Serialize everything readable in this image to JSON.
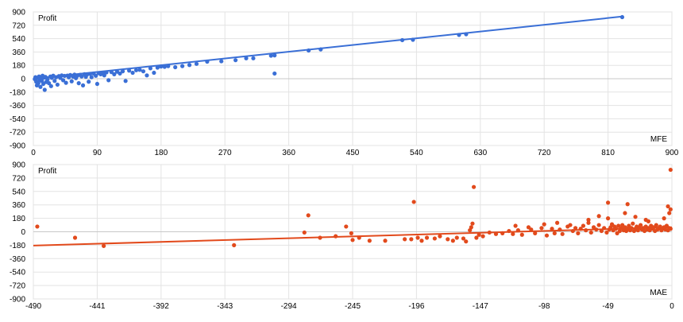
{
  "chart_data": [
    {
      "type": "scatter",
      "title": "",
      "ylabel": "Profit",
      "xlabel": "MFE",
      "xlim": [
        0,
        900
      ],
      "ylim": [
        -900,
        900
      ],
      "x_ticks": [
        0,
        90,
        180,
        270,
        360,
        450,
        540,
        630,
        720,
        810,
        900
      ],
      "y_ticks": [
        900,
        720,
        540,
        360,
        180,
        0,
        -180,
        -360,
        -540,
        -720,
        -900
      ],
      "grid": true,
      "colors": {
        "points": "#3a6fd6",
        "trend": "#3a6fd6"
      },
      "trendline": {
        "x": [
          0,
          830
        ],
        "y": [
          0,
          838
        ]
      },
      "series": [
        {
          "points": [
            [
              2,
              -5
            ],
            [
              3,
              20
            ],
            [
              4,
              -40
            ],
            [
              5,
              -90
            ],
            [
              6,
              10
            ],
            [
              7,
              -60
            ],
            [
              8,
              30
            ],
            [
              9,
              -20
            ],
            [
              10,
              -110
            ],
            [
              11,
              5
            ],
            [
              12,
              -30
            ],
            [
              13,
              40
            ],
            [
              14,
              -70
            ],
            [
              15,
              15
            ],
            [
              16,
              -150
            ],
            [
              17,
              25
            ],
            [
              18,
              -45
            ],
            [
              19,
              8
            ],
            [
              20,
              -10
            ],
            [
              22,
              -60
            ],
            [
              24,
              30
            ],
            [
              25,
              -100
            ],
            [
              26,
              12
            ],
            [
              28,
              40
            ],
            [
              30,
              -30
            ],
            [
              32,
              20
            ],
            [
              34,
              -80
            ],
            [
              36,
              35
            ],
            [
              38,
              10
            ],
            [
              40,
              45
            ],
            [
              42,
              -20
            ],
            [
              44,
              38
            ],
            [
              46,
              -55
            ],
            [
              48,
              42
            ],
            [
              50,
              18
            ],
            [
              52,
              50
            ],
            [
              54,
              -35
            ],
            [
              56,
              28
            ],
            [
              58,
              55
            ],
            [
              60,
              8
            ],
            [
              62,
              40
            ],
            [
              64,
              -60
            ],
            [
              66,
              52
            ],
            [
              68,
              30
            ],
            [
              70,
              -90
            ],
            [
              72,
              60
            ],
            [
              74,
              25
            ],
            [
              76,
              58
            ],
            [
              78,
              -40
            ],
            [
              80,
              65
            ],
            [
              82,
              20
            ],
            [
              85,
              70
            ],
            [
              88,
              40
            ],
            [
              90,
              -70
            ],
            [
              92,
              75
            ],
            [
              95,
              60
            ],
            [
              98,
              80
            ],
            [
              100,
              45
            ],
            [
              103,
              85
            ],
            [
              106,
              -20
            ],
            [
              110,
              90
            ],
            [
              114,
              60
            ],
            [
              118,
              95
            ],
            [
              122,
              70
            ],
            [
              126,
              100
            ],
            [
              130,
              -30
            ],
            [
              135,
              110
            ],
            [
              140,
              80
            ],
            [
              145,
              115
            ],
            [
              150,
              120
            ],
            [
              155,
              100
            ],
            [
              160,
              45
            ],
            [
              165,
              140
            ],
            [
              170,
              80
            ],
            [
              175,
              150
            ],
            [
              180,
              165
            ],
            [
              185,
              160
            ],
            [
              190,
              170
            ],
            [
              200,
              155
            ],
            [
              210,
              170
            ],
            [
              220,
              185
            ],
            [
              230,
              200
            ],
            [
              245,
              230
            ],
            [
              265,
              235
            ],
            [
              285,
              250
            ],
            [
              300,
              275
            ],
            [
              310,
              275
            ],
            [
              335,
              310
            ],
            [
              340,
              315
            ],
            [
              340,
              70
            ],
            [
              388,
              380
            ],
            [
              405,
              395
            ],
            [
              520,
              520
            ],
            [
              535,
              525
            ],
            [
              600,
              590
            ],
            [
              610,
              600
            ],
            [
              830,
              830
            ]
          ]
        }
      ]
    },
    {
      "type": "scatter",
      "title": "",
      "ylabel": "Profit",
      "xlabel": "MAE",
      "xlim": [
        -490,
        0
      ],
      "ylim": [
        -900,
        900
      ],
      "x_ticks": [
        -490,
        -441,
        -392,
        -343,
        -294,
        -245,
        -196,
        -147,
        -98,
        -49,
        0
      ],
      "y_ticks": [
        900,
        720,
        540,
        360,
        180,
        0,
        -180,
        -360,
        -540,
        -720,
        -900
      ],
      "grid": true,
      "colors": {
        "points": "#e24a1c",
        "trend": "#e24a1c"
      },
      "trendline": {
        "x": [
          -490,
          0
        ],
        "y": [
          -185,
          60
        ]
      },
      "series": [
        {
          "points": [
            [
              -487,
              70
            ],
            [
              -458,
              -80
            ],
            [
              -436,
              -190
            ],
            [
              -336,
              -180
            ],
            [
              -282,
              -10
            ],
            [
              -279,
              220
            ],
            [
              -270,
              -80
            ],
            [
              -258,
              -60
            ],
            [
              -250,
              70
            ],
            [
              -246,
              -20
            ],
            [
              -245,
              -110
            ],
            [
              -240,
              -80
            ],
            [
              -232,
              -120
            ],
            [
              -220,
              -120
            ],
            [
              -205,
              -100
            ],
            [
              -200,
              -100
            ],
            [
              -198,
              400
            ],
            [
              -195,
              -80
            ],
            [
              -192,
              -120
            ],
            [
              -188,
              -80
            ],
            [
              -182,
              -90
            ],
            [
              -178,
              -60
            ],
            [
              -172,
              -100
            ],
            [
              -168,
              -120
            ],
            [
              -165,
              -80
            ],
            [
              -160,
              -90
            ],
            [
              -158,
              -130
            ],
            [
              -155,
              20
            ],
            [
              -154,
              60
            ],
            [
              -153,
              110
            ],
            [
              -152,
              600
            ],
            [
              -150,
              -80
            ],
            [
              -148,
              -40
            ],
            [
              -145,
              -60
            ],
            [
              -140,
              -10
            ],
            [
              -135,
              -30
            ],
            [
              -130,
              -20
            ],
            [
              -125,
              10
            ],
            [
              -122,
              -30
            ],
            [
              -120,
              80
            ],
            [
              -118,
              20
            ],
            [
              -115,
              -40
            ],
            [
              -110,
              60
            ],
            [
              -108,
              30
            ],
            [
              -105,
              -20
            ],
            [
              -100,
              50
            ],
            [
              -98,
              100
            ],
            [
              -96,
              -50
            ],
            [
              -92,
              40
            ],
            [
              -90,
              -20
            ],
            [
              -88,
              120
            ],
            [
              -86,
              30
            ],
            [
              -84,
              -30
            ],
            [
              -80,
              70
            ],
            [
              -78,
              90
            ],
            [
              -76,
              10
            ],
            [
              -74,
              50
            ],
            [
              -72,
              -20
            ],
            [
              -70,
              40
            ],
            [
              -68,
              80
            ],
            [
              -66,
              20
            ],
            [
              -64,
              120
            ],
            [
              -62,
              -10
            ],
            [
              -60,
              60
            ],
            [
              -58,
              30
            ],
            [
              -56,
              90
            ],
            [
              -54,
              10
            ],
            [
              -52,
              50
            ],
            [
              -50,
              -10
            ],
            [
              -49,
              180
            ],
            [
              -48,
              30
            ],
            [
              -47,
              60
            ],
            [
              -46,
              100
            ],
            [
              -45,
              20
            ],
            [
              -44,
              70
            ],
            [
              -43,
              40
            ],
            [
              -42,
              -20
            ],
            [
              -41,
              80
            ],
            [
              -40,
              10
            ],
            [
              -39,
              50
            ],
            [
              -38,
              90
            ],
            [
              -37,
              20
            ],
            [
              -36,
              60
            ],
            [
              -35,
              10
            ],
            [
              -34,
              40
            ],
            [
              -33,
              80
            ],
            [
              -32,
              20
            ],
            [
              -31,
              50
            ],
            [
              -30,
              110
            ],
            [
              -29,
              10
            ],
            [
              -28,
              40
            ],
            [
              -27,
              70
            ],
            [
              -26,
              20
            ],
            [
              -25,
              60
            ],
            [
              -24,
              90
            ],
            [
              -23,
              30
            ],
            [
              -22,
              50
            ],
            [
              -21,
              10
            ],
            [
              -20,
              70
            ],
            [
              -19,
              30
            ],
            [
              -18,
              50
            ],
            [
              -17,
              20
            ],
            [
              -16,
              80
            ],
            [
              -15,
              40
            ],
            [
              -14,
              60
            ],
            [
              -13,
              10
            ],
            [
              -12,
              90
            ],
            [
              -11,
              30
            ],
            [
              -10,
              50
            ],
            [
              -9,
              70
            ],
            [
              -8,
              20
            ],
            [
              -7,
              40
            ],
            [
              -6,
              60
            ],
            [
              -5,
              30
            ],
            [
              -4,
              80
            ],
            [
              -3,
              20
            ],
            [
              -2,
              50
            ],
            [
              -1,
              40
            ],
            [
              -49,
              390
            ],
            [
              -34,
              370
            ],
            [
              -36,
              250
            ],
            [
              -28,
              200
            ],
            [
              -20,
              160
            ],
            [
              -18,
              140
            ],
            [
              -56,
              210
            ],
            [
              -64,
              160
            ],
            [
              -6,
              180
            ],
            [
              -2,
              250
            ],
            [
              -1,
              300
            ],
            [
              -3,
              340
            ],
            [
              -1,
              830
            ]
          ]
        }
      ]
    }
  ]
}
